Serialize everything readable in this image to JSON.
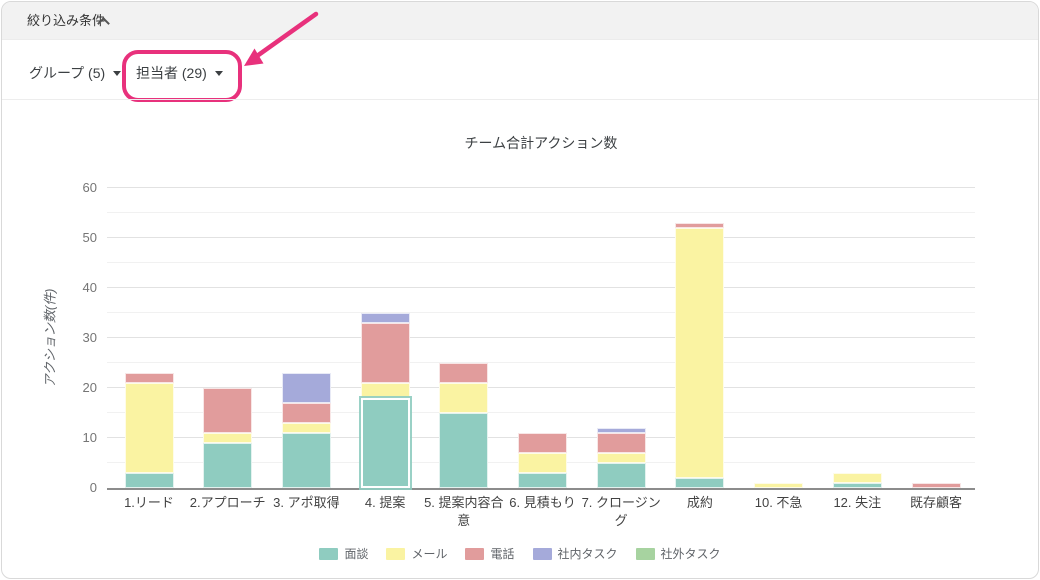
{
  "panel": {
    "header": "絞り込み条件",
    "collapse_icon": "chevron-up",
    "filters": [
      {
        "label": "グループ (5)"
      },
      {
        "label": "担当者 (29)",
        "highlighted": true
      }
    ]
  },
  "annotation": {
    "color": "#e8317c",
    "shape": "rounded-rect-and-arrow",
    "target": "担当者 (29)"
  },
  "chart_data": {
    "type": "bar",
    "stacked": true,
    "title": "チーム合計アクション数",
    "ylabel": "アクション数(件)",
    "xlabel": "",
    "ylim": [
      0,
      60
    ],
    "ytick_step": 10,
    "minor_grid_step": 5,
    "grid": true,
    "legend_position": "bottom",
    "categories": [
      "1.リード",
      "2.アプローチ",
      "3. アポ取得",
      "4. 提案",
      "5. 提案内容合意",
      "6. 見積もり",
      "7. クロージング",
      "成約",
      "10. 不急",
      "12. 失注",
      "既存顧客"
    ],
    "yticks": [
      0,
      10,
      20,
      30,
      40,
      50,
      60
    ],
    "series": [
      {
        "name": "面談",
        "color": "#8fccc0",
        "values": [
          3,
          9,
          11,
          18,
          15,
          3,
          5,
          2,
          0,
          1,
          0
        ]
      },
      {
        "name": "メール",
        "color": "#faf3a2",
        "values": [
          18,
          2,
          2,
          3,
          6,
          4,
          2,
          50,
          1,
          2,
          0
        ]
      },
      {
        "name": "電話",
        "color": "#e19c9c",
        "values": [
          2,
          9,
          4,
          12,
          4,
          4,
          4,
          1,
          0,
          0,
          1
        ]
      },
      {
        "name": "社内タスク",
        "color": "#a5aada",
        "values": [
          0,
          0,
          6,
          2,
          0,
          0,
          1,
          0,
          0,
          0,
          0
        ]
      },
      {
        "name": "社外タスク",
        "color": "#a7d3a0",
        "values": [
          0,
          0,
          0,
          0,
          0,
          0,
          0,
          0,
          0,
          0,
          0
        ]
      }
    ],
    "highlight": {
      "series": "面談",
      "category": "4. 提案"
    }
  }
}
